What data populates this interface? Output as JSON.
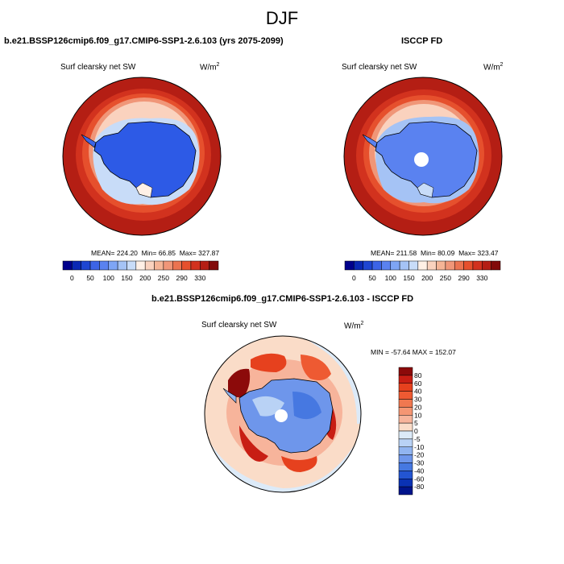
{
  "page": {
    "title": "DJF"
  },
  "panels": {
    "top_left": {
      "title": "b.e21.BSSP126cmip6.f09_g17.CMIP6-SSP1-2.6.103 (yrs 2075-2099)",
      "variable": "Surf clearsky net SW",
      "units": "W/m",
      "units_exp": "2",
      "stats": {
        "mean_label": "MEAN=",
        "mean": "224.20",
        "min_label": "Min=",
        "min": "66.85",
        "max_label": "Max=",
        "max": "327.87"
      }
    },
    "top_right": {
      "title": "ISCCP FD",
      "variable": "Surf clearsky net SW",
      "units": "W/m",
      "units_exp": "2",
      "stats": {
        "mean_label": "MEAN=",
        "mean": "211.58",
        "min_label": "Min=",
        "min": "80.09",
        "max_label": "Max=",
        "max": "323.47"
      }
    },
    "bottom": {
      "title": "b.e21.BSSP126cmip6.f09_g17.CMIP6-SSP1-2.6.103 - ISCCP FD",
      "variable": "Surf clearsky net SW",
      "units": "W/m",
      "units_exp": "2",
      "stats": {
        "min_label": "MIN =",
        "min": "-57.64",
        "max_label": "MAX =",
        "max": "152.07"
      }
    }
  },
  "colorbar_abs": {
    "labels": [
      "0",
      "50",
      "100",
      "150",
      "200",
      "250",
      "290",
      "330"
    ],
    "colors": [
      "#00008b",
      "#0a28b4",
      "#1e46d2",
      "#3c64e6",
      "#5a82f0",
      "#7ea5f5",
      "#a5c3f5",
      "#c8dcf8",
      "#fff0e6",
      "#fad2be",
      "#f5b496",
      "#f09678",
      "#eb7350",
      "#e6502d",
      "#d2321e",
      "#b41e14",
      "#820a0a"
    ]
  },
  "colorbar_diff": {
    "labels": [
      "80",
      "60",
      "40",
      "30",
      "20",
      "10",
      "5",
      "0",
      "-5",
      "-10",
      "-20",
      "-30",
      "-40",
      "-60",
      "-80"
    ],
    "colors": [
      "#8c0a0a",
      "#c81e14",
      "#e6411e",
      "#ee5a32",
      "#f07850",
      "#f59673",
      "#f7b49b",
      "#fadcc8",
      "#dceaf8",
      "#b9d2f5",
      "#91b4f0",
      "#6e96eb",
      "#4678e1",
      "#2355d2",
      "#0a32b4",
      "#00148c"
    ]
  }
}
